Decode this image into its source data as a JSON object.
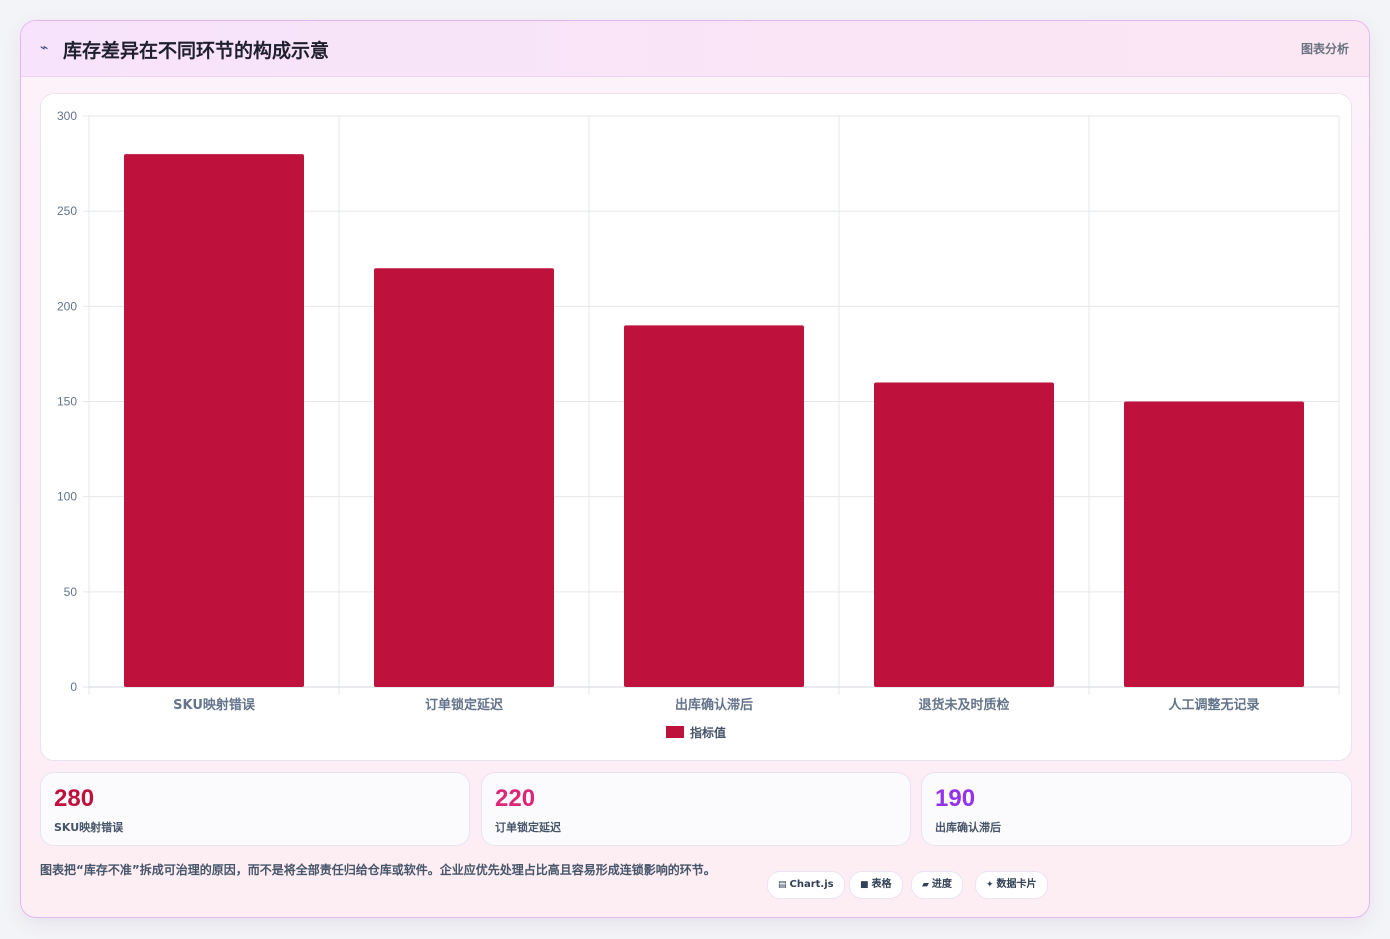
{
  "header": {
    "icon": "chart-line-icon",
    "title": "库存差异在不同环节的构成示意",
    "tag": "图表分析"
  },
  "chart_data": {
    "type": "bar",
    "categories": [
      "SKU映射错误",
      "订单锁定延迟",
      "出库确认滞后",
      "退货未及时质检",
      "人工调整无记录"
    ],
    "series": [
      {
        "name": "指标值",
        "values": [
          280,
          220,
          190,
          160,
          150
        ]
      }
    ],
    "ylim": [
      0,
      300
    ],
    "yticks": [
      0,
      50,
      100,
      150,
      200,
      250,
      300
    ],
    "grid": true,
    "legend": "bottom",
    "colors": {
      "bar": "#be123c",
      "grid": "#e5e7eb",
      "tick": "#64748b"
    }
  },
  "stats": [
    {
      "value": "280",
      "label": "SKU映射错误",
      "color": "#be123c"
    },
    {
      "value": "220",
      "label": "订单锁定延迟",
      "color": "#db2777"
    },
    {
      "value": "190",
      "label": "出库确认滞后",
      "color": "#9333ea"
    }
  ],
  "note": "图表把“库存不准”拆成可治理的原因，而不是将全部责任归给仓库或软件。企业应优先处理占比高且容易形成连锁影响的环节。",
  "chips": [
    {
      "icon": "▤",
      "icon_name": "chart-icon",
      "label": "Chart.js"
    },
    {
      "icon": "■",
      "icon_name": "table-icon",
      "label": "表格"
    },
    {
      "icon": "▰",
      "icon_name": "progress-icon",
      "label": "进度"
    },
    {
      "icon": "✦",
      "icon_name": "sparkle-icon",
      "label": "数据卡片"
    }
  ]
}
